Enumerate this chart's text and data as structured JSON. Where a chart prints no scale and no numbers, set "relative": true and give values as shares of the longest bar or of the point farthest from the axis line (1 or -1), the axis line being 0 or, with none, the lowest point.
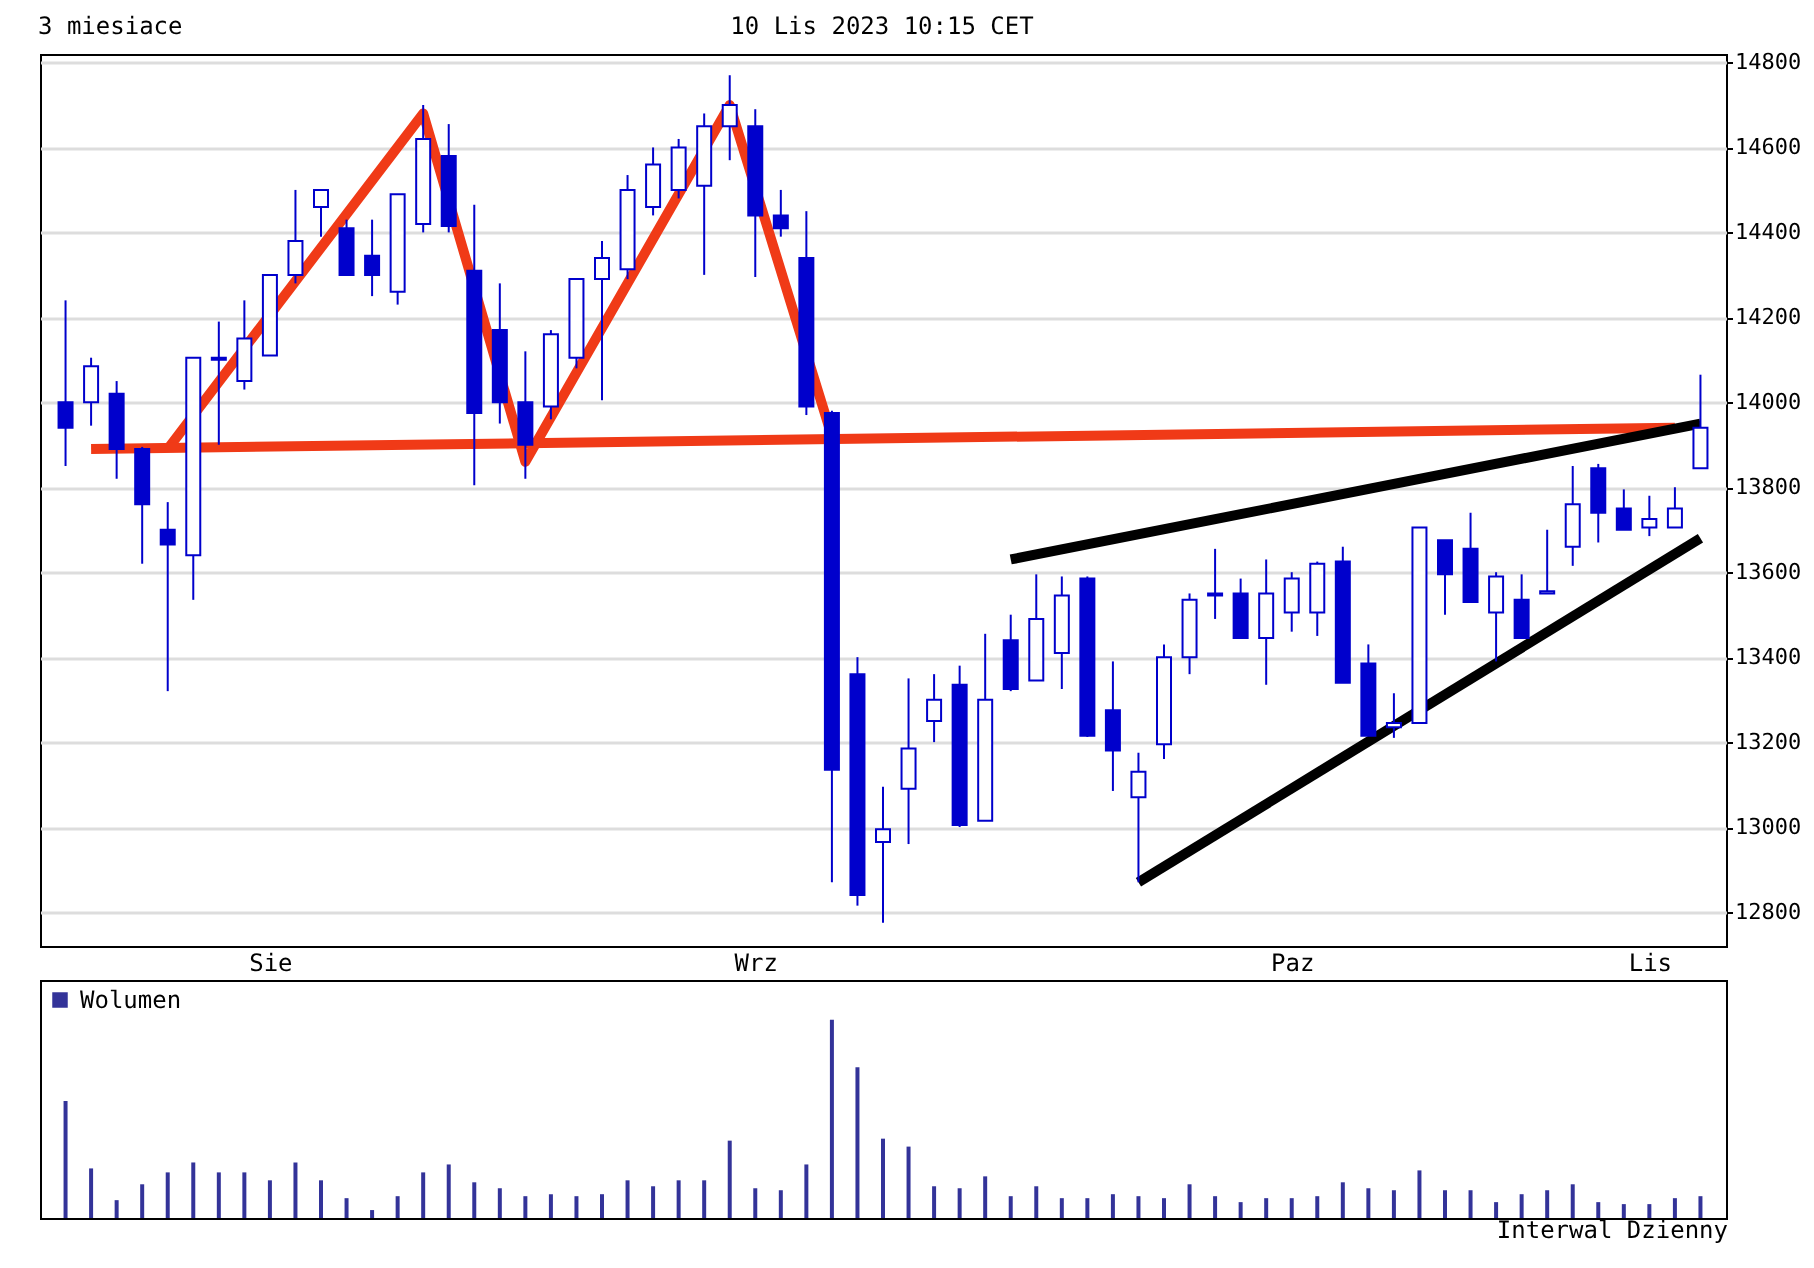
{
  "chart_data": [
    {
      "type": "candlestick",
      "title": "3 miesiace",
      "subtitle": "10 Lis 2023 10:15 CET",
      "color": "#0000cc",
      "categories": [
        null,
        null,
        null,
        null,
        null,
        null,
        null,
        null,
        "Sie",
        null,
        null,
        null,
        null,
        null,
        null,
        null,
        null,
        null,
        null,
        null,
        null,
        null,
        null,
        null,
        null,
        null,
        null,
        "Wrz",
        null,
        null,
        null,
        null,
        null,
        null,
        null,
        null,
        null,
        null,
        null,
        null,
        null,
        null,
        null,
        null,
        null,
        null,
        null,
        null,
        "Paz",
        null,
        null,
        null,
        null,
        null,
        null,
        null,
        null,
        null,
        null,
        null,
        null,
        null,
        "Lis",
        null,
        null
      ],
      "ohlc": [
        [
          14000,
          14240,
          13850,
          13940
        ],
        [
          14000,
          14105,
          13945,
          14085
        ],
        [
          14020,
          14050,
          13820,
          13890
        ],
        [
          13890,
          13895,
          13620,
          13760
        ],
        [
          13700,
          13765,
          13320,
          13665
        ],
        [
          13640,
          14105,
          13535,
          14105
        ],
        [
          14100,
          14190,
          13900,
          14105
        ],
        [
          14050,
          14240,
          14030,
          14150
        ],
        [
          14110,
          14300,
          14110,
          14300
        ],
        [
          14300,
          14500,
          14280,
          14380
        ],
        [
          14460,
          14500,
          14390,
          14500
        ],
        [
          14410,
          14430,
          14300,
          14300
        ],
        [
          14345,
          14430,
          14250,
          14300
        ],
        [
          14260,
          14490,
          14230,
          14490
        ],
        [
          14420,
          14700,
          14400,
          14620
        ],
        [
          14580,
          14655,
          14400,
          14415
        ],
        [
          14310,
          14465,
          13805,
          13975
        ],
        [
          14170,
          14280,
          13950,
          14000
        ],
        [
          14000,
          14120,
          13820,
          13900
        ],
        [
          13990,
          14170,
          13960,
          14160
        ],
        [
          14105,
          14290,
          14080,
          14290
        ],
        [
          14290,
          14380,
          14005,
          14340
        ],
        [
          14313,
          14535,
          14290,
          14500
        ],
        [
          14460,
          14600,
          14440,
          14560
        ],
        [
          14500,
          14620,
          14480,
          14600
        ],
        [
          14510,
          14680,
          14300,
          14650
        ],
        [
          14650,
          14770,
          14570,
          14700
        ],
        [
          14650,
          14690,
          14295,
          14440
        ],
        [
          14440,
          14500,
          14390,
          14410
        ],
        [
          14340,
          14450,
          13970,
          13990
        ],
        [
          13975,
          13980,
          12870,
          13135
        ],
        [
          13360,
          13400,
          12815,
          12840
        ],
        [
          12965,
          13095,
          12775,
          12995
        ],
        [
          13090,
          13350,
          12960,
          13185
        ],
        [
          13250,
          13360,
          13200,
          13300
        ],
        [
          13335,
          13380,
          13000,
          13005
        ],
        [
          13015,
          13455,
          13015,
          13300
        ],
        [
          13440,
          13500,
          13320,
          13325
        ],
        [
          13345,
          13595,
          13345,
          13490
        ],
        [
          13410,
          13590,
          13325,
          13545
        ],
        [
          13585,
          13590,
          13212,
          13215
        ],
        [
          13275,
          13390,
          13085,
          13180
        ],
        [
          13070,
          13175,
          12870,
          13130
        ],
        [
          13195,
          13430,
          13160,
          13400
        ],
        [
          13400,
          13550,
          13360,
          13535
        ],
        [
          13545,
          13655,
          13490,
          13550
        ],
        [
          13550,
          13585,
          13445,
          13445
        ],
        [
          13445,
          13630,
          13335,
          13550
        ],
        [
          13505,
          13600,
          13460,
          13585
        ],
        [
          13505,
          13625,
          13450,
          13620
        ],
        [
          13625,
          13660,
          13340,
          13340
        ],
        [
          13385,
          13430,
          13215,
          13215
        ],
        [
          13235,
          13315,
          13210,
          13245
        ],
        [
          13245,
          13705,
          13245,
          13705
        ],
        [
          13675,
          13675,
          13500,
          13595
        ],
        [
          13655,
          13740,
          13528,
          13530
        ],
        [
          13505,
          13600,
          13390,
          13590
        ],
        [
          13535,
          13595,
          13445,
          13445
        ],
        [
          13550,
          13700,
          13550,
          13555
        ],
        [
          13660,
          13850,
          13615,
          13760
        ],
        [
          13845,
          13855,
          13670,
          13740
        ],
        [
          13750,
          13795,
          13700,
          13700
        ],
        [
          13705,
          13780,
          13685,
          13725
        ],
        [
          13705,
          13800,
          13705,
          13750
        ],
        [
          13845,
          14065,
          13845,
          13940
        ]
      ],
      "series": [
        {
          "type": "line",
          "color": "#f03a17",
          "values": [
            null,
            null,
            null,
            null,
            13890,
            null,
            null,
            null,
            null,
            null,
            null,
            null,
            null,
            null,
            14680,
            null,
            null,
            null,
            13860,
            null,
            null,
            null,
            null,
            null,
            null,
            null,
            14700,
            null,
            null,
            null,
            13920,
            null,
            null,
            null,
            null,
            null,
            null,
            null,
            null,
            null,
            null,
            null,
            null,
            null,
            null,
            null,
            null,
            null,
            null,
            null,
            null,
            null,
            null,
            null,
            null,
            null,
            null,
            null,
            null,
            null,
            null,
            null,
            null,
            null,
            null
          ]
        },
        {
          "type": "line",
          "color": "#f03a17",
          "values": [
            null,
            13890,
            null,
            null,
            null,
            null,
            null,
            null,
            null,
            null,
            null,
            null,
            null,
            null,
            null,
            null,
            null,
            null,
            null,
            null,
            null,
            null,
            null,
            null,
            null,
            null,
            null,
            null,
            null,
            null,
            null,
            null,
            null,
            null,
            null,
            null,
            null,
            null,
            null,
            null,
            null,
            null,
            null,
            null,
            null,
            null,
            null,
            null,
            null,
            null,
            null,
            null,
            null,
            null,
            null,
            null,
            null,
            null,
            null,
            null,
            null,
            null,
            null,
            13940,
            null
          ]
        },
        {
          "type": "line",
          "color": "#000000",
          "values": [
            null,
            null,
            null,
            null,
            null,
            null,
            null,
            null,
            null,
            null,
            null,
            null,
            null,
            null,
            null,
            null,
            null,
            null,
            null,
            null,
            null,
            null,
            null,
            null,
            null,
            null,
            null,
            null,
            null,
            null,
            null,
            null,
            null,
            null,
            null,
            null,
            null,
            13630,
            null,
            null,
            null,
            null,
            null,
            null,
            null,
            null,
            null,
            null,
            null,
            null,
            null,
            null,
            null,
            null,
            null,
            null,
            null,
            null,
            null,
            null,
            null,
            null,
            null,
            null,
            13950
          ]
        },
        {
          "type": "line",
          "color": "#000000",
          "values": [
            null,
            null,
            null,
            null,
            null,
            null,
            null,
            null,
            null,
            null,
            null,
            null,
            null,
            null,
            null,
            null,
            null,
            null,
            null,
            null,
            null,
            null,
            null,
            null,
            null,
            null,
            null,
            null,
            null,
            null,
            null,
            null,
            null,
            null,
            null,
            null,
            null,
            null,
            null,
            null,
            null,
            null,
            12870,
            null,
            null,
            null,
            null,
            null,
            null,
            null,
            null,
            null,
            null,
            null,
            null,
            null,
            null,
            null,
            null,
            null,
            null,
            null,
            null,
            null,
            13680
          ]
        }
      ],
      "ylim": [
        12720,
        14820
      ],
      "yticks": [
        12800,
        13000,
        13200,
        13400,
        13600,
        13800,
        14000,
        14200,
        14400,
        14600,
        14800
      ],
      "grid": "y"
    },
    {
      "type": "bar",
      "relative": true,
      "legend": "top left",
      "annotations": [
        "Interwal Dzienny"
      ],
      "categories": [
        null,
        null,
        null,
        null,
        null,
        null,
        null,
        null,
        null,
        null,
        null,
        null,
        null,
        null,
        null,
        null,
        null,
        null,
        null,
        null,
        null,
        null,
        null,
        null,
        null,
        null,
        null,
        null,
        null,
        null,
        null,
        null,
        null,
        null,
        null,
        null,
        null,
        null,
        null,
        null,
        null,
        null,
        null,
        null,
        null,
        null,
        null,
        null,
        null,
        null,
        null,
        null,
        null,
        null,
        null,
        null,
        null,
        null,
        null,
        null,
        null,
        null,
        null,
        null,
        null
      ],
      "series": [
        {
          "name": "Wolumen",
          "color": "#333399",
          "values": [
            0.59,
            0.25,
            0.09,
            0.17,
            0.23,
            0.28,
            0.23,
            0.23,
            0.19,
            0.28,
            0.19,
            0.1,
            0.04,
            0.11,
            0.23,
            0.27,
            0.18,
            0.15,
            0.11,
            0.12,
            0.11,
            0.12,
            0.19,
            0.16,
            0.19,
            0.19,
            0.39,
            0.15,
            0.14,
            0.27,
            1,
            0.76,
            0.4,
            0.36,
            0.16,
            0.15,
            0.21,
            0.11,
            0.16,
            0.1,
            0.1,
            0.12,
            0.11,
            0.1,
            0.17,
            0.11,
            0.08,
            0.1,
            0.1,
            0.11,
            0.18,
            0.15,
            0.14,
            0.24,
            0.14,
            0.14,
            0.08,
            0.12,
            0.14,
            0.17,
            0.08,
            0.07,
            0.07,
            0.1,
            0.11
          ]
        }
      ]
    }
  ]
}
